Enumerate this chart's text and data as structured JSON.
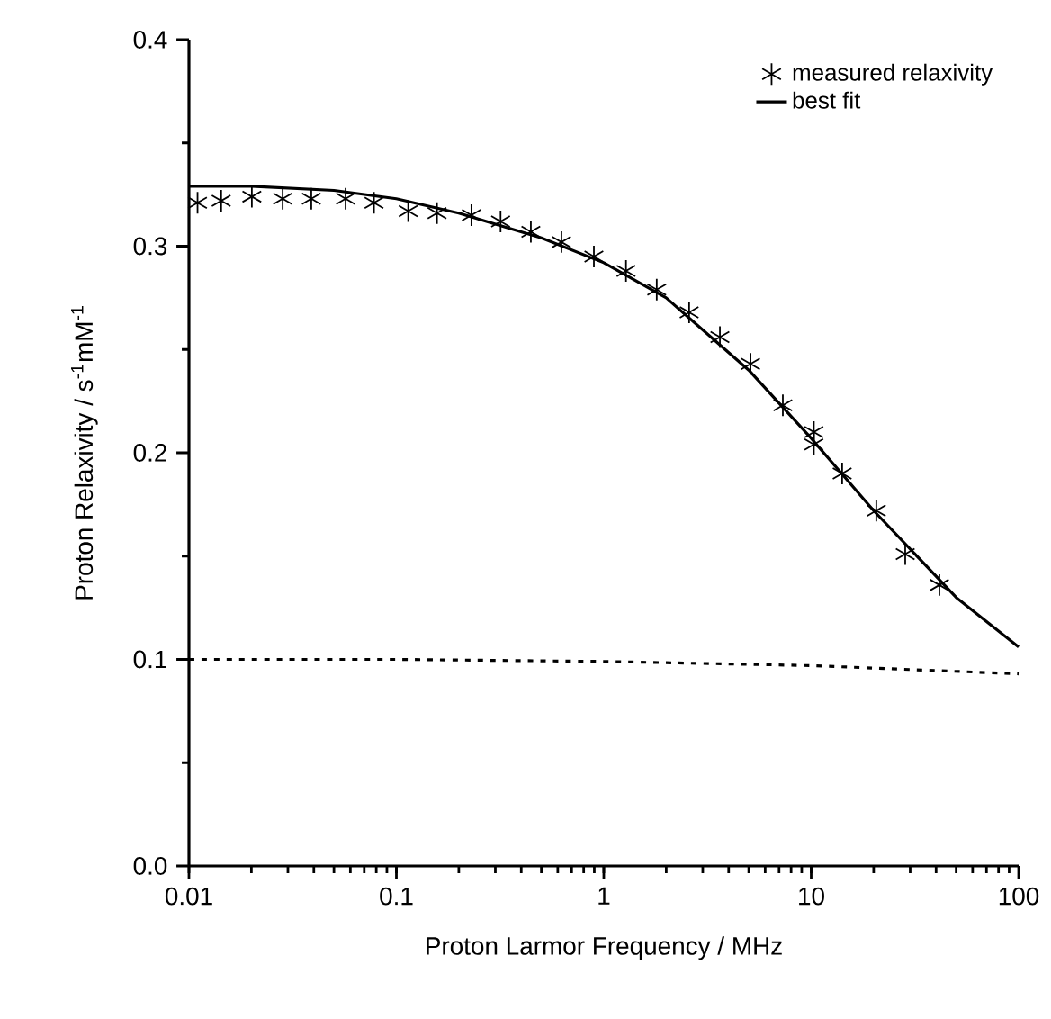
{
  "chart_data": {
    "type": "scatter",
    "xlabel": "Proton Larmor Frequency / MHz",
    "ylabel": "Proton Relaxivity / s$^{-1}$mM$^{-1}$",
    "log": "x",
    "xlim": [
      0.01,
      100
    ],
    "ylim": [
      0,
      0.4
    ],
    "xticks": [
      0.01,
      0.1,
      1,
      10,
      100
    ],
    "yticks": [
      {
        "value": 0,
        "label": "0.0"
      },
      {
        "value": 0.1,
        "label": "0.1"
      },
      {
        "value": 0.2,
        "label": "0.2"
      },
      {
        "value": 0.3,
        "label": "0.3"
      },
      {
        "value": 0.4,
        "label": "0.4"
      }
    ],
    "grid": false,
    "legend": "top right",
    "series": [
      {
        "name": "measured relaxivity",
        "type": "scatter",
        "marker": "cross",
        "color": "#000000",
        "x": [
          0.011,
          0.0143,
          0.0201,
          0.0283,
          0.0389,
          0.0569,
          0.078,
          0.114,
          0.157,
          0.23,
          0.318,
          0.445,
          0.625,
          0.896,
          1.28,
          1.8,
          2.58,
          3.63,
          5.1,
          7.3,
          10.3,
          10.3,
          14.1,
          20.6,
          28.4,
          41.5
        ],
        "values": [
          0.321,
          0.322,
          0.324,
          0.323,
          0.323,
          0.323,
          0.321,
          0.317,
          0.316,
          0.315,
          0.312,
          0.307,
          0.302,
          0.295,
          0.288,
          0.279,
          0.268,
          0.256,
          0.243,
          0.223,
          0.21,
          0.204,
          0.19,
          0.172,
          0.151,
          0.136
        ]
      },
      {
        "name": "best fit",
        "type": "line",
        "line_style": "solid",
        "color": "#000000",
        "x": [
          0.01,
          0.02,
          0.05,
          0.1,
          0.2,
          0.5,
          1,
          2,
          5,
          10,
          20,
          50,
          100
        ],
        "values": [
          0.329,
          0.329,
          0.327,
          0.323,
          0.316,
          0.304,
          0.292,
          0.275,
          0.24,
          0.207,
          0.172,
          0.13,
          0.106
        ]
      },
      {
        "type": "line",
        "line_style": "dotted",
        "color": "#000000",
        "x": [
          0.01,
          0.1,
          1,
          10,
          100
        ],
        "values": [
          0.1,
          0.1,
          0.099,
          0.097,
          0.093
        ]
      }
    ]
  }
}
